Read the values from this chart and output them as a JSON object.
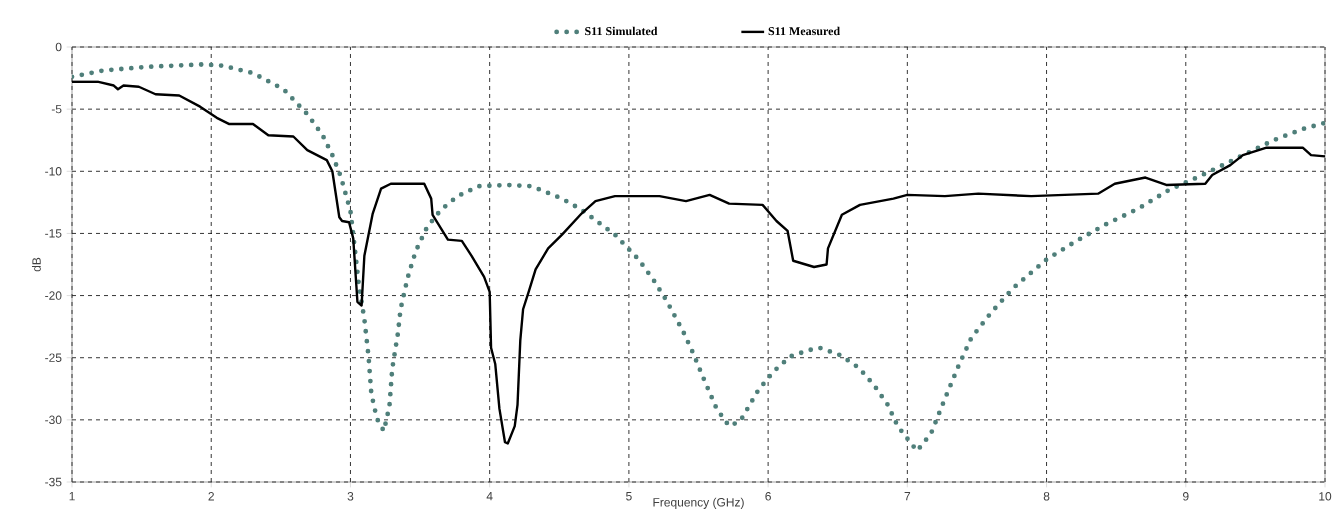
{
  "chart_data": {
    "type": "line",
    "xlabel": "Frequency (GHz)",
    "ylabel": "dB",
    "xlim": [
      1,
      10
    ],
    "ylim": [
      -35,
      0
    ],
    "xticks": [
      1,
      2,
      3,
      4,
      5,
      6,
      7,
      8,
      9,
      10
    ],
    "yticks": [
      -35,
      -30,
      -25,
      -20,
      -15,
      -10,
      -5,
      0
    ],
    "grid": true,
    "legend": "top",
    "series": [
      {
        "name": "S11 Simulated",
        "color": "#4f7f7a",
        "line_style": "dotted",
        "x": [
          1,
          1.22,
          1.53,
          1.94,
          2.08,
          2.3,
          2.52,
          2.69,
          2.8,
          2.87,
          2.93,
          3.0,
          3.02,
          3.06,
          3.1,
          3.13,
          3.15,
          3.19,
          3.24,
          3.28,
          3.3,
          3.34,
          3.36,
          3.4,
          3.42,
          3.47,
          3.55,
          3.65,
          3.77,
          3.92,
          4.13,
          4.3,
          4.52,
          4.66,
          4.9,
          5.07,
          5.18,
          5.27,
          5.39,
          5.46,
          5.53,
          5.63,
          5.72,
          5.8,
          5.93,
          6.04,
          6.16,
          6.29,
          6.37,
          6.52,
          6.65,
          6.76,
          6.86,
          6.93,
          7.07,
          7.17,
          7.27,
          7.37,
          7.46,
          7.6,
          7.76,
          8.0,
          8.2,
          8.42,
          8.66,
          8.88,
          9.1,
          9.34,
          9.63,
          9.84,
          10
        ],
        "values": [
          -2.4,
          -1.9,
          -1.6,
          -1.4,
          -1.5,
          -2.1,
          -3.4,
          -5.4,
          -7.1,
          -8.7,
          -10.4,
          -13.2,
          -15.1,
          -19.1,
          -21.9,
          -24.9,
          -27.9,
          -29.9,
          -30.9,
          -28.9,
          -25.9,
          -23.1,
          -21.1,
          -19.1,
          -18.2,
          -16.4,
          -14.5,
          -13.1,
          -12.0,
          -11.2,
          -11.1,
          -11.2,
          -12.2,
          -13.1,
          -15.1,
          -17.1,
          -18.8,
          -20.4,
          -22.9,
          -24.6,
          -26.5,
          -29.1,
          -30.5,
          -30.1,
          -27.6,
          -26.1,
          -24.9,
          -24.4,
          -24.2,
          -24.8,
          -25.8,
          -27.2,
          -28.8,
          -30.5,
          -32.5,
          -31.1,
          -28.3,
          -25.6,
          -23.4,
          -21.4,
          -19.4,
          -17.1,
          -15.7,
          -14.3,
          -13.0,
          -11.5,
          -10.4,
          -9.1,
          -7.5,
          -6.6,
          -6.1
        ]
      },
      {
        "name": "S11 Measured",
        "color": "#000000",
        "line_style": "solid",
        "x": [
          1,
          1.19,
          1.3,
          1.33,
          1.37,
          1.48,
          1.6,
          1.77,
          1.92,
          2.04,
          2.13,
          2.3,
          2.41,
          2.59,
          2.69,
          2.83,
          2.87,
          2.92,
          2.94,
          2.99,
          3.02,
          3.05,
          3.08,
          3.1,
          3.16,
          3.22,
          3.29,
          3.53,
          3.58,
          3.59,
          3.7,
          3.8,
          3.87,
          3.96,
          4.0,
          4.01,
          4.04,
          4.07,
          4.11,
          4.13,
          4.18,
          4.2,
          4.22,
          4.24,
          4.28,
          4.33,
          4.42,
          4.52,
          4.66,
          4.76,
          4.9,
          5.22,
          5.41,
          5.58,
          5.72,
          5.96,
          6.06,
          6.14,
          6.18,
          6.33,
          6.42,
          6.43,
          6.53,
          6.66,
          6.9,
          7.0,
          7.27,
          7.51,
          7.89,
          8.37,
          8.49,
          8.71,
          8.86,
          9.14,
          9.19,
          9.32,
          9.41,
          9.58,
          9.84,
          9.9,
          10
        ],
        "values": [
          -2.8,
          -2.8,
          -3.1,
          -3.4,
          -3.1,
          -3.2,
          -3.8,
          -3.9,
          -4.8,
          -5.7,
          -6.2,
          -6.2,
          -7.1,
          -7.2,
          -8.3,
          -9.1,
          -10.0,
          -13.7,
          -14.0,
          -14.1,
          -15.4,
          -20.5,
          -20.8,
          -16.8,
          -13.4,
          -11.4,
          -11.0,
          -11.0,
          -12.2,
          -13.5,
          -15.5,
          -15.6,
          -16.8,
          -18.5,
          -19.7,
          -24.2,
          -25.5,
          -29.1,
          -31.8,
          -31.9,
          -30.5,
          -28.8,
          -23.6,
          -21.1,
          -19.7,
          -17.9,
          -16.2,
          -15.1,
          -13.4,
          -12.4,
          -12.0,
          -12.0,
          -12.4,
          -11.9,
          -12.6,
          -12.7,
          -14.0,
          -14.8,
          -17.2,
          -17.7,
          -17.5,
          -16.2,
          -13.5,
          -12.7,
          -12.2,
          -11.9,
          -12.0,
          -11.8,
          -12.0,
          -11.8,
          -11.0,
          -10.5,
          -11.1,
          -11.0,
          -10.3,
          -9.5,
          -8.7,
          -8.1,
          -8.1,
          -8.7,
          -8.8
        ]
      }
    ]
  }
}
